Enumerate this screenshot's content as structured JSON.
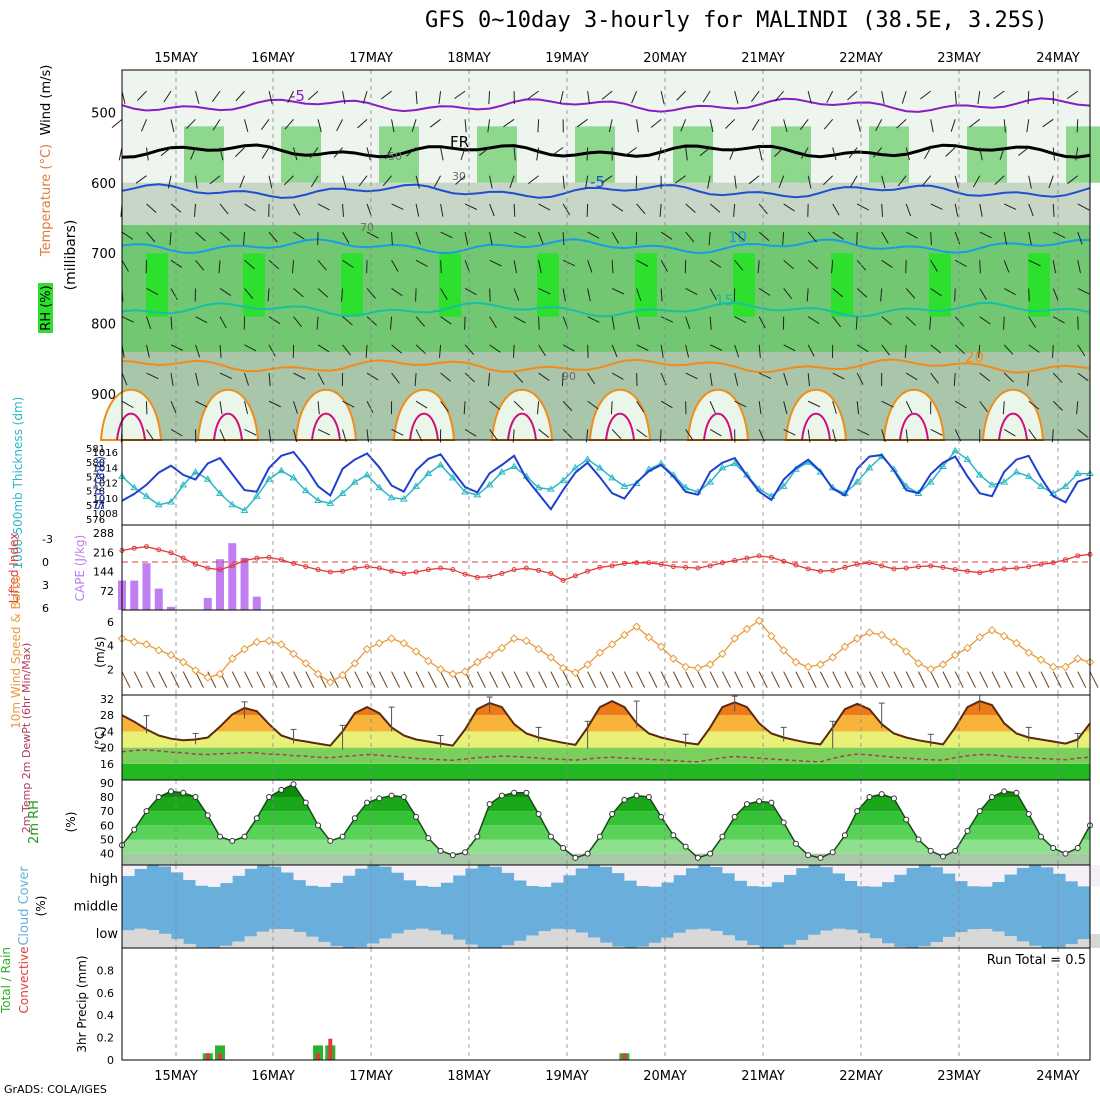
{
  "title": "GFS 0~10day 3-hourly for MALINDI (38.5E, 3.25S)",
  "credit": "GrADS: COLA/IGES",
  "days": [
    "15MAY",
    "16MAY",
    "17MAY",
    "18MAY",
    "19MAY",
    "20MAY",
    "21MAY",
    "22MAY",
    "23MAY",
    "24MAY"
  ],
  "chart_data": [
    {
      "type": "heatmap",
      "panel": "upper-air",
      "ylabel_parts": [
        "RH (%)",
        "Temperature (°C)",
        "Wind (m/s)"
      ],
      "ylabel_units": "(millibars)",
      "y_ticks": [
        500,
        600,
        700,
        800,
        900
      ],
      "ylim": [
        965,
        440
      ],
      "isotherms": [
        {
          "label": "-5",
          "color": "#8a1cc6",
          "pressure": 490
        },
        {
          "label": "FR",
          "color": "#000000",
          "pressure": 555
        },
        {
          "label": "-5",
          "color": "#1f4fd0",
          "pressure": 612
        },
        {
          "label": "10",
          "color": "#1a9be8",
          "pressure": 690
        },
        {
          "label": "15",
          "color": "#17c0a0",
          "pressure": 780
        },
        {
          "label": "20",
          "color": "#f08c1a",
          "pressure": 860
        }
      ],
      "rh_contour_labels": [
        "50",
        "30",
        "70",
        "90"
      ]
    },
    {
      "type": "line",
      "panel": "thickness-slp",
      "ylabel_left": "1000-500mb Thickness (dm)",
      "ylabel_right": "SLP (mb)",
      "left_ticks": [
        576,
        577,
        578,
        579,
        580,
        581
      ],
      "right_ticks": [
        1008,
        1010,
        1012,
        1014,
        1016
      ],
      "series": [
        {
          "name": "SLP",
          "color": "#1f3fcf",
          "values": [
            1009.6,
            1010.5,
            1011.7,
            1013.3,
            1014.2,
            1013.0,
            1012.4,
            1014.5,
            1015.2,
            1013.1,
            1011.0,
            1010.8,
            1013.9,
            1015.5,
            1016.0,
            1014.0,
            1011.5,
            1010.3,
            1013.8,
            1015.0,
            1015.8,
            1014.0,
            1011.6,
            1010.8,
            1013.6,
            1015.1,
            1015.7,
            1013.5,
            1011.4,
            1010.7,
            1013.2,
            1014.3,
            1015.5,
            1012.5,
            1010.5,
            1008.5,
            1011.0,
            1013.3,
            1014.6,
            1012.7,
            1010.6,
            1009.9,
            1012.0,
            1013.5,
            1014.3,
            1012.8,
            1010.8,
            1010.4,
            1013.4,
            1014.6,
            1015.2,
            1012.9,
            1010.8,
            1009.7,
            1012.4,
            1013.9,
            1015.0,
            1013.5,
            1011.2,
            1010.3,
            1013.8,
            1015.4,
            1015.6,
            1013.6,
            1011.0,
            1010.6,
            1013.1,
            1014.6,
            1015.4,
            1012.8,
            1010.6,
            1010.2,
            1013.4,
            1015.0,
            1015.5,
            1012.6,
            1010.2,
            1009.4,
            1012.1,
            1012.6
          ]
        },
        {
          "name": "Thickness",
          "color": "#2bb8c6",
          "values": [
            579.0,
            578.2,
            577.6,
            577.0,
            577.2,
            578.4,
            579.3,
            578.8,
            577.8,
            577.0,
            576.6,
            577.6,
            578.8,
            579.4,
            578.9,
            578.0,
            577.3,
            577.1,
            577.8,
            578.6,
            579.1,
            578.2,
            577.5,
            577.4,
            578.3,
            579.2,
            579.8,
            578.9,
            577.9,
            577.7,
            578.4,
            579.3,
            579.7,
            579.0,
            578.2,
            578.1,
            578.7,
            579.6,
            580.2,
            579.6,
            578.9,
            578.3,
            578.5,
            579.5,
            579.9,
            579.1,
            578.2,
            577.9,
            578.6,
            579.6,
            579.9,
            579.1,
            578.1,
            577.6,
            578.3,
            579.5,
            580.0,
            579.3,
            578.2,
            577.8,
            578.6,
            579.6,
            580.4,
            579.5,
            578.3,
            577.8,
            578.6,
            579.7,
            580.8,
            580.2,
            579.1,
            578.4,
            578.6,
            579.3,
            579.0,
            578.3,
            577.8,
            578.3,
            579.2,
            579.2
          ]
        }
      ]
    },
    {
      "type": "bar",
      "panel": "stability",
      "ylabel_left": "Lifted Index",
      "ylabel_right": "CAPE (J/kg)",
      "left_ticks": [
        -3,
        0,
        3,
        6
      ],
      "right_ticks": [
        72,
        144,
        216,
        288
      ],
      "series": [
        {
          "name": "CAPE",
          "color": "#c07ef0",
          "values": [
            110,
            110,
            175,
            80,
            12,
            0,
            0,
            45,
            190,
            250,
            195,
            50,
            0,
            0,
            0,
            0,
            0,
            0,
            0,
            0,
            0,
            0,
            0,
            0,
            0,
            0,
            0,
            0,
            0,
            0,
            0,
            0,
            0,
            0,
            0,
            0,
            0,
            0,
            0,
            0,
            0,
            0,
            0,
            0,
            0,
            0,
            0,
            0,
            0,
            0,
            0,
            0,
            0,
            0,
            0,
            0,
            0,
            0,
            0,
            0,
            0,
            0,
            0,
            0,
            0,
            0,
            0,
            0,
            0,
            0,
            0,
            0,
            0,
            0,
            0,
            0,
            0,
            0,
            0,
            0
          ]
        },
        {
          "name": "Lifted Index",
          "color": "#e03a3a",
          "values": [
            -1.5,
            -1.8,
            -2.0,
            -1.6,
            -1.2,
            -0.5,
            0.3,
            0.8,
            1.0,
            0.5,
            -0.2,
            -0.5,
            -0.6,
            -0.3,
            0.2,
            0.6,
            1.0,
            1.3,
            1.2,
            0.8,
            0.6,
            0.8,
            1.2,
            1.5,
            1.3,
            1.0,
            0.8,
            1.0,
            1.6,
            2.0,
            1.9,
            1.5,
            1.0,
            0.8,
            1.1,
            1.5,
            2.4,
            1.8,
            1.2,
            0.7,
            0.5,
            0.2,
            0.1,
            0.1,
            0.3,
            0.6,
            0.7,
            0.8,
            0.5,
            0.1,
            -0.2,
            -0.5,
            -0.8,
            -0.6,
            -0.1,
            0.4,
            0.9,
            1.2,
            1.1,
            0.7,
            0.3,
            0.1,
            0.5,
            0.9,
            0.8,
            0.6,
            0.5,
            0.7,
            1.0,
            1.2,
            1.4,
            1.1,
            0.9,
            0.8,
            0.6,
            0.3,
            0.1,
            -0.3,
            -0.8,
            -1.0
          ]
        }
      ]
    },
    {
      "type": "line",
      "panel": "10m-wind",
      "ylabel": "10m Wind Speed & Barbs",
      "yunits": "(m/s)",
      "y_ticks": [
        2,
        4,
        6
      ],
      "series": [
        {
          "name": "10m wind speed",
          "color": "#e89a3a",
          "values": [
            4.6,
            4.3,
            4.1,
            3.6,
            3.2,
            2.6,
            1.9,
            1.3,
            1.6,
            2.9,
            3.7,
            4.3,
            4.4,
            4.1,
            3.3,
            2.5,
            1.6,
            0.9,
            1.5,
            2.5,
            3.7,
            4.2,
            4.6,
            4.2,
            3.5,
            2.7,
            2.0,
            1.6,
            1.8,
            2.6,
            3.2,
            3.8,
            4.6,
            4.4,
            3.7,
            3.0,
            2.1,
            1.7,
            2.4,
            3.4,
            4.1,
            4.9,
            5.6,
            4.7,
            3.9,
            2.9,
            2.2,
            2.1,
            2.4,
            3.3,
            4.6,
            5.4,
            6.1,
            4.8,
            3.6,
            2.6,
            2.2,
            2.4,
            3.0,
            3.9,
            4.6,
            5.1,
            4.9,
            4.3,
            3.5,
            2.5,
            2.0,
            2.4,
            3.2,
            3.8,
            4.7,
            5.3,
            4.8,
            4.2,
            3.4,
            2.8,
            2.2,
            2.2,
            2.9,
            2.6
          ]
        }
      ]
    },
    {
      "type": "area",
      "panel": "temperature",
      "ylabel": "2m Temp 2m DewPt (6hr Min/Max)",
      "yunits": "(°C)",
      "y_ticks": [
        16,
        20,
        24,
        28,
        32
      ],
      "series": [
        {
          "name": "2m Temp",
          "color": "#5a2a0a",
          "values": [
            28.0,
            26.4,
            24.5,
            23.0,
            22.2,
            21.8,
            22.0,
            22.5,
            25.2,
            28.2,
            29.8,
            29.0,
            25.8,
            23.0,
            22.0,
            21.5,
            21.0,
            20.5,
            24.0,
            28.5,
            30.0,
            28.5,
            25.0,
            23.0,
            22.0,
            21.5,
            21.0,
            20.5,
            24.5,
            29.5,
            31.0,
            30.0,
            25.8,
            23.5,
            22.5,
            21.8,
            21.2,
            20.7,
            25.0,
            30.0,
            31.5,
            30.0,
            26.0,
            23.5,
            22.5,
            21.8,
            21.2,
            20.8,
            25.0,
            30.0,
            31.2,
            30.0,
            26.0,
            23.5,
            22.5,
            21.8,
            21.2,
            20.8,
            25.0,
            29.5,
            30.8,
            29.5,
            25.8,
            23.5,
            22.5,
            21.8,
            21.3,
            20.8,
            25.0,
            30.0,
            31.5,
            30.5,
            26.0,
            23.5,
            22.5,
            22.0,
            21.5,
            21.0,
            22.0,
            26.0
          ]
        },
        {
          "name": "2m DewPt",
          "color": "#b03a5a",
          "values": [
            19.0,
            19.3,
            19.4,
            19.2,
            18.9,
            18.7,
            18.4,
            18.3,
            18.5,
            18.6,
            18.8,
            18.7,
            18.4,
            18.3,
            18.0,
            17.9,
            17.6,
            17.5,
            17.8,
            18.0,
            18.3,
            18.1,
            17.9,
            17.6,
            17.3,
            17.2,
            17.0,
            16.9,
            17.2,
            17.5,
            17.7,
            17.9,
            17.8,
            17.6,
            17.4,
            17.2,
            17.1,
            16.9,
            17.2,
            17.5,
            17.6,
            17.4,
            17.3,
            17.1,
            17.0,
            16.8,
            16.6,
            16.5,
            17.0,
            17.5,
            17.8,
            17.6,
            17.4,
            17.2,
            17.0,
            16.8,
            16.6,
            16.5,
            17.3,
            18.0,
            18.4,
            18.2,
            17.9,
            17.6,
            17.4,
            17.2,
            17.0,
            16.9,
            17.5,
            18.0,
            18.3,
            18.2,
            17.9,
            17.6,
            17.5,
            17.3,
            17.2,
            17.0,
            17.4,
            17.6
          ]
        }
      ]
    },
    {
      "type": "area",
      "panel": "rh",
      "ylabel": "2m RH",
      "yunits": "(%)",
      "y_ticks": [
        40,
        50,
        60,
        70,
        80,
        90
      ],
      "series": [
        {
          "name": "2m RH",
          "color": "#1a8a1a",
          "values": [
            46,
            57,
            70,
            80,
            84,
            83,
            80,
            67,
            52,
            49,
            52,
            65,
            80,
            85,
            89,
            76,
            60,
            49,
            52,
            65,
            76,
            79,
            81,
            80,
            66,
            51,
            42,
            39,
            41,
            52,
            75,
            81,
            83,
            83,
            68,
            52,
            44,
            37,
            40,
            52,
            68,
            78,
            81,
            80,
            66,
            53,
            45,
            37,
            40,
            52,
            66,
            75,
            77,
            76,
            62,
            47,
            39,
            37,
            41,
            53,
            70,
            80,
            82,
            79,
            64,
            50,
            42,
            38,
            42,
            56,
            70,
            80,
            84,
            83,
            68,
            52,
            44,
            40,
            44,
            60
          ]
        }
      ]
    },
    {
      "type": "heatmap",
      "panel": "cloud-cover",
      "ylabel": "Cloud Cover",
      "yunits": "(%)",
      "levels": [
        "high",
        "middle",
        "low"
      ]
    },
    {
      "type": "bar",
      "panel": "precip",
      "ylabel": "3hr Precip (mm)",
      "legend_total": "Total / Rain",
      "legend_conv": "Convective",
      "run_total": "Run Total = 0.5",
      "y_ticks": [
        0,
        0.2,
        0.4,
        0.6,
        0.8
      ],
      "ylim": [
        0,
        1.0
      ],
      "series": [
        {
          "name": "Total",
          "color": "#2db02d",
          "values": [
            0,
            0,
            0,
            0,
            0,
            0,
            0,
            0.06,
            0.13,
            0,
            0,
            0,
            0,
            0,
            0,
            0,
            0.13,
            0.13,
            0,
            0,
            0,
            0,
            0,
            0,
            0,
            0,
            0,
            0,
            0,
            0,
            0,
            0,
            0,
            0,
            0,
            0,
            0,
            0,
            0,
            0,
            0,
            0.06,
            0,
            0,
            0,
            0,
            0,
            0,
            0,
            0,
            0,
            0,
            0,
            0,
            0,
            0,
            0,
            0,
            0,
            0,
            0,
            0,
            0,
            0,
            0,
            0,
            0,
            0,
            0,
            0,
            0,
            0,
            0,
            0,
            0,
            0,
            0,
            0,
            0,
            0
          ]
        },
        {
          "name": "Convective",
          "color": "#e03a3a",
          "values": [
            0,
            0,
            0,
            0,
            0,
            0,
            0,
            0.06,
            0.06,
            0,
            0,
            0,
            0,
            0,
            0,
            0,
            0.06,
            0.19,
            0,
            0,
            0,
            0,
            0,
            0,
            0,
            0,
            0,
            0,
            0,
            0,
            0,
            0,
            0,
            0,
            0,
            0,
            0,
            0,
            0,
            0,
            0,
            0.06,
            0,
            0,
            0,
            0,
            0,
            0,
            0,
            0,
            0,
            0,
            0,
            0,
            0,
            0,
            0,
            0,
            0,
            0,
            0,
            0,
            0,
            0,
            0,
            0,
            0,
            0,
            0,
            0,
            0,
            0,
            0,
            0,
            0,
            0,
            0,
            0,
            0,
            0
          ]
        }
      ]
    }
  ]
}
